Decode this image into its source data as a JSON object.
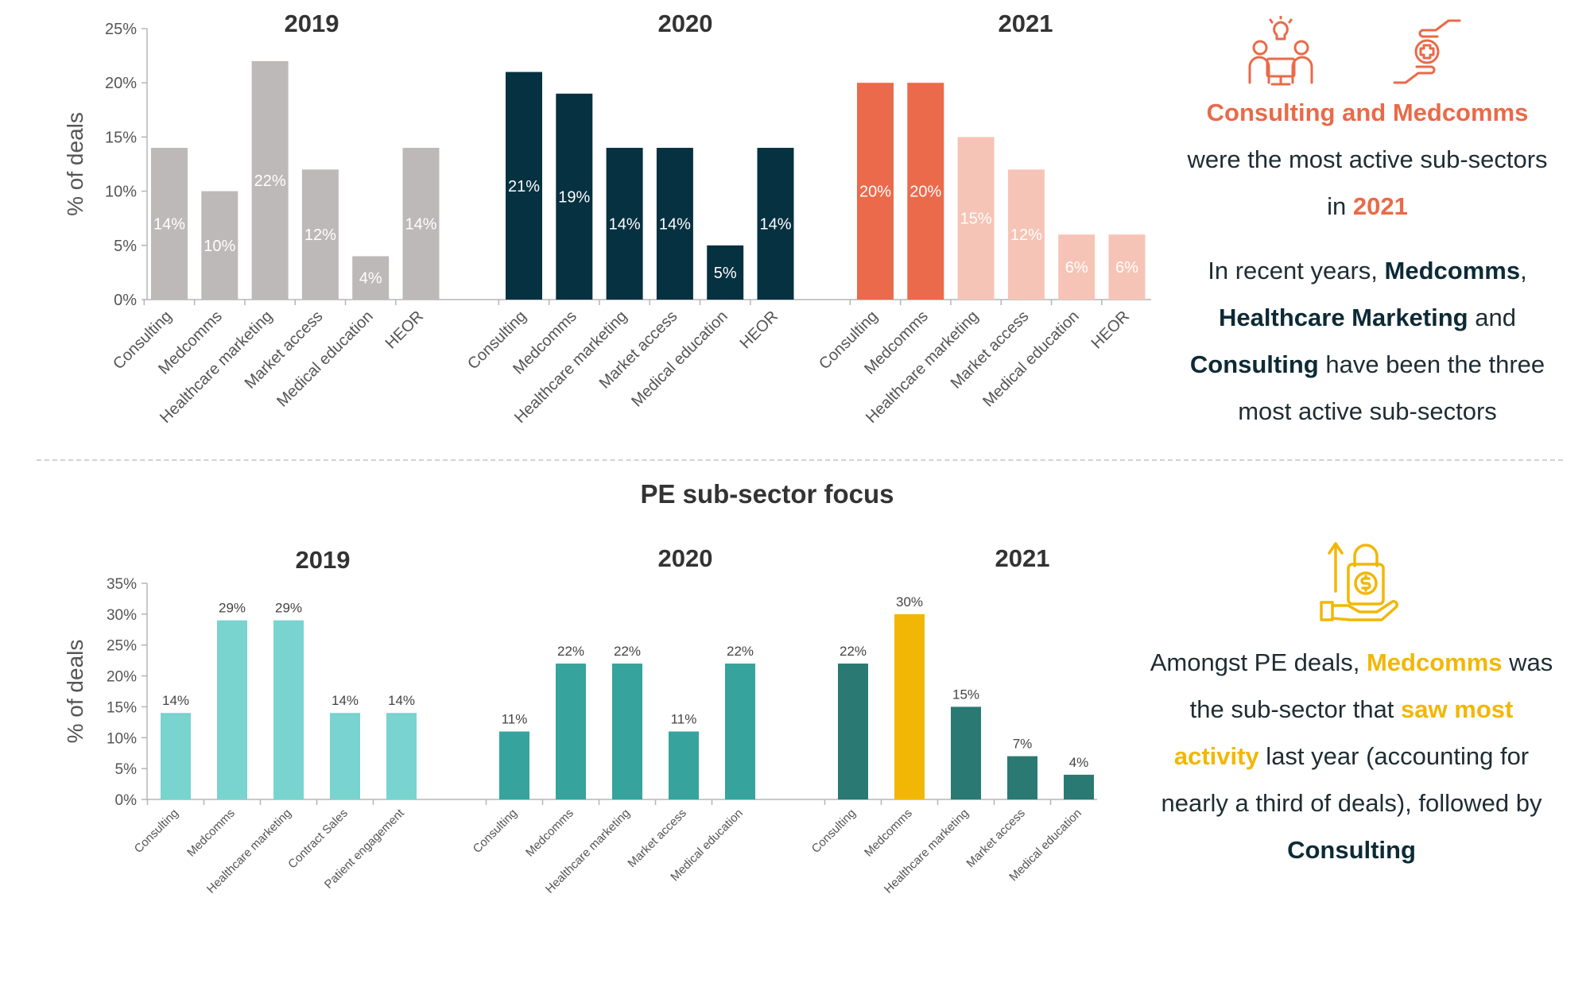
{
  "colors": {
    "grey": "#bdb9b8",
    "navy": "#063141",
    "orange": "#eb6a4b",
    "peach": "#f6c4b6",
    "teal_light": "#79d3cf",
    "teal_mid": "#36a39d",
    "teal_dark": "#2a7a73",
    "gold": "#f2b705",
    "axis": "#b5b5b5",
    "text": "#333333"
  },
  "top_panel": {
    "ylabel": "% of deals",
    "yticks": [
      "0%",
      "5%",
      "10%",
      "15%",
      "20%",
      "25%"
    ],
    "ylim": [
      0,
      25
    ]
  },
  "bottom_panel": {
    "title": "PE sub-sector focus",
    "ylabel": "% of deals",
    "yticks": [
      "0%",
      "5%",
      "10%",
      "15%",
      "20%",
      "25%",
      "30%",
      "35%"
    ],
    "ylim": [
      0,
      35
    ]
  },
  "chart_data": [
    {
      "type": "bar",
      "title": "2019",
      "categories": [
        "Consulting",
        "Medcomms",
        "Healthcare marketing",
        "Market access",
        "Medical education",
        "HEOR"
      ],
      "values": [
        14,
        10,
        22,
        12,
        4,
        14
      ],
      "labels": [
        "14%",
        "10%",
        "22%",
        "12%",
        "4%",
        "14%"
      ],
      "ylabel": "% of deals",
      "ylim": [
        0,
        25
      ]
    },
    {
      "type": "bar",
      "title": "2020",
      "categories": [
        "Consulting",
        "Medcomms",
        "Healthcare marketing",
        "Market access",
        "Medical education",
        "HEOR"
      ],
      "values": [
        21,
        19,
        14,
        14,
        5,
        14
      ],
      "labels": [
        "21%",
        "19%",
        "14%",
        "14%",
        "5%",
        "14%"
      ],
      "ylabel": "% of deals",
      "ylim": [
        0,
        25
      ]
    },
    {
      "type": "bar",
      "title": "2021",
      "categories": [
        "Consulting",
        "Medcomms",
        "Healthcare marketing",
        "Market access",
        "Medical education",
        "HEOR"
      ],
      "values": [
        20,
        20,
        15,
        12,
        6,
        6
      ],
      "labels": [
        "20%",
        "20%",
        "15%",
        "12%",
        "6%",
        "6%"
      ],
      "ylabel": "% of deals",
      "ylim": [
        0,
        25
      ]
    },
    {
      "type": "bar",
      "title": "2019",
      "categories": [
        "Consulting",
        "Medcomms",
        "Healthcare marketing",
        "Contract Sales",
        "Patient engagement"
      ],
      "values": [
        14,
        29,
        29,
        14,
        14
      ],
      "labels": [
        "14%",
        "29%",
        "29%",
        "14%",
        "14%"
      ],
      "ylabel": "% of deals",
      "ylim": [
        0,
        35
      ]
    },
    {
      "type": "bar",
      "title": "2020",
      "categories": [
        "Consulting",
        "Medcomms",
        "Healthcare marketing",
        "Market access",
        "Medical education"
      ],
      "values": [
        11,
        22,
        22,
        11,
        22
      ],
      "labels": [
        "11%",
        "22%",
        "22%",
        "11%",
        "22%"
      ],
      "ylabel": "% of deals",
      "ylim": [
        0,
        35
      ]
    },
    {
      "type": "bar",
      "title": "2021",
      "categories": [
        "Consulting",
        "Medcomms",
        "Healthcare marketing",
        "Market access",
        "Medical education"
      ],
      "values": [
        22,
        30,
        15,
        7,
        4
      ],
      "labels": [
        "22%",
        "30%",
        "15%",
        "7%",
        "4%"
      ],
      "ylabel": "% of deals",
      "ylim": [
        0,
        35
      ]
    }
  ],
  "sidebar_top": {
    "headline": "Consulting and Medcomms",
    "line2": "were the most active sub-sectors",
    "line3_pre": "in ",
    "line3_year": "2021",
    "p2_pre": "In recent years, ",
    "p2_b1": "Medcomms",
    "p2_sep": ",",
    "p2_b2": "Healthcare Marketing",
    "p2_and": " and",
    "p2_b3": "Consulting",
    "p2_rest1": " have been the three",
    "p2_rest2": "most active sub-sectors",
    "icon1": "meeting-lightbulb-icon",
    "icon2": "hand-medical-cross-icon"
  },
  "sidebar_bottom": {
    "p_pre": "Amongst PE deals, ",
    "p_b1": "Medcomms",
    "p_was": " was",
    "p_l2_pre": "the sub-sector that ",
    "p_b2a": "saw most",
    "p_b2b": "activity",
    "p_l3_rest": " last year (accounting for",
    "p_l4": "nearly a third of deals), followed by",
    "p_b3": "Consulting",
    "icon": "money-bag-growth-icon"
  }
}
